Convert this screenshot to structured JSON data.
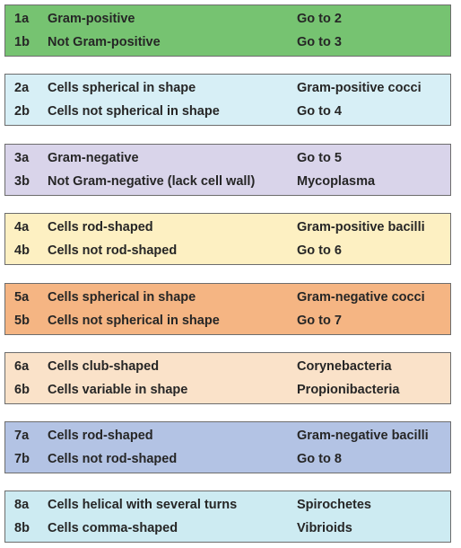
{
  "groups": [
    {
      "color": "#76c371",
      "rows": [
        {
          "code": "1a",
          "text": "Gram-positive",
          "result": "Go to 2"
        },
        {
          "code": "1b",
          "text": "Not Gram-positive",
          "result": "Go to 3"
        }
      ]
    },
    {
      "color": "#d7eff6",
      "rows": [
        {
          "code": "2a",
          "text": "Cells spherical in shape",
          "result": "Gram-positive cocci"
        },
        {
          "code": "2b",
          "text": "Cells not spherical in shape",
          "result": "Go to 4"
        }
      ]
    },
    {
      "color": "#d9d4ea",
      "rows": [
        {
          "code": "3a",
          "text": "Gram-negative",
          "result": "Go to 5"
        },
        {
          "code": "3b",
          "text": "Not Gram-negative (lack cell wall)",
          "result": "Mycoplasma"
        }
      ]
    },
    {
      "color": "#fdf0c2",
      "rows": [
        {
          "code": "4a",
          "text": "Cells rod-shaped",
          "result": "Gram-positive bacilli"
        },
        {
          "code": "4b",
          "text": "Cells not rod-shaped",
          "result": "Go to 6"
        }
      ]
    },
    {
      "color": "#f5b583",
      "rows": [
        {
          "code": "5a",
          "text": "Cells spherical in shape",
          "result": "Gram-negative cocci"
        },
        {
          "code": "5b",
          "text": "Cells not spherical in shape",
          "result": "Go to 7"
        }
      ]
    },
    {
      "color": "#fae2c9",
      "rows": [
        {
          "code": "6a",
          "text": "Cells club-shaped",
          "result": "Corynebacteria"
        },
        {
          "code": "6b",
          "text": "Cells variable in shape",
          "result": "Propionibacteria"
        }
      ]
    },
    {
      "color": "#b3c3e4",
      "rows": [
        {
          "code": "7a",
          "text": "Cells rod-shaped",
          "result": "Gram-negative bacilli"
        },
        {
          "code": "7b",
          "text": "Cells not rod-shaped",
          "result": "Go to 8"
        }
      ]
    },
    {
      "color": "#cdebf2",
      "rows": [
        {
          "code": "8a",
          "text": "Cells helical with several turns",
          "result": "Spirochetes"
        },
        {
          "code": "8b",
          "text": "Cells comma-shaped",
          "result": "Vibrioids"
        }
      ]
    }
  ]
}
